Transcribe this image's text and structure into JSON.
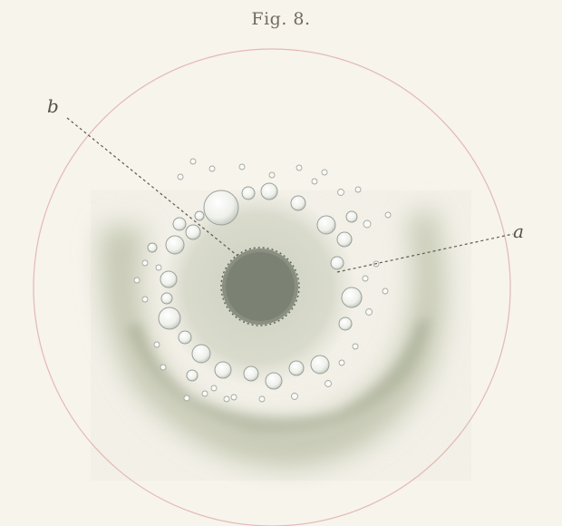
{
  "figure": {
    "title": "Fig. 8.",
    "labels": {
      "a": "a",
      "b": "b"
    }
  },
  "colors": {
    "paper": "#f7f4ec",
    "circle_outline": "#e3b9b5",
    "halo_wash": "#b8bea3",
    "nucleus": "#7d8474",
    "leader_line": "#5f5a52",
    "droplet_stroke": "#9aa09a"
  }
}
